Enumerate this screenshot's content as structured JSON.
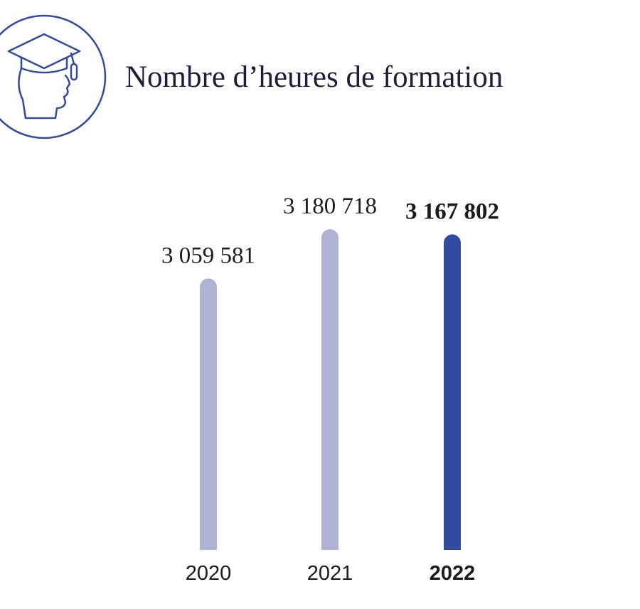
{
  "chart_data": {
    "type": "bar",
    "title": "Nombre d’heures de formation",
    "categories": [
      "2020",
      "2021",
      "2022"
    ],
    "values": [
      3059581,
      3180718,
      3167802
    ],
    "value_labels": [
      "3 059 581",
      "3 180 718",
      "3 167 802"
    ],
    "colors": [
      "#b0b4d4",
      "#b0b4d4",
      "#324ba0"
    ],
    "emphasis": [
      false,
      false,
      true
    ],
    "ylim": [
      2393000,
      3200000
    ]
  }
}
